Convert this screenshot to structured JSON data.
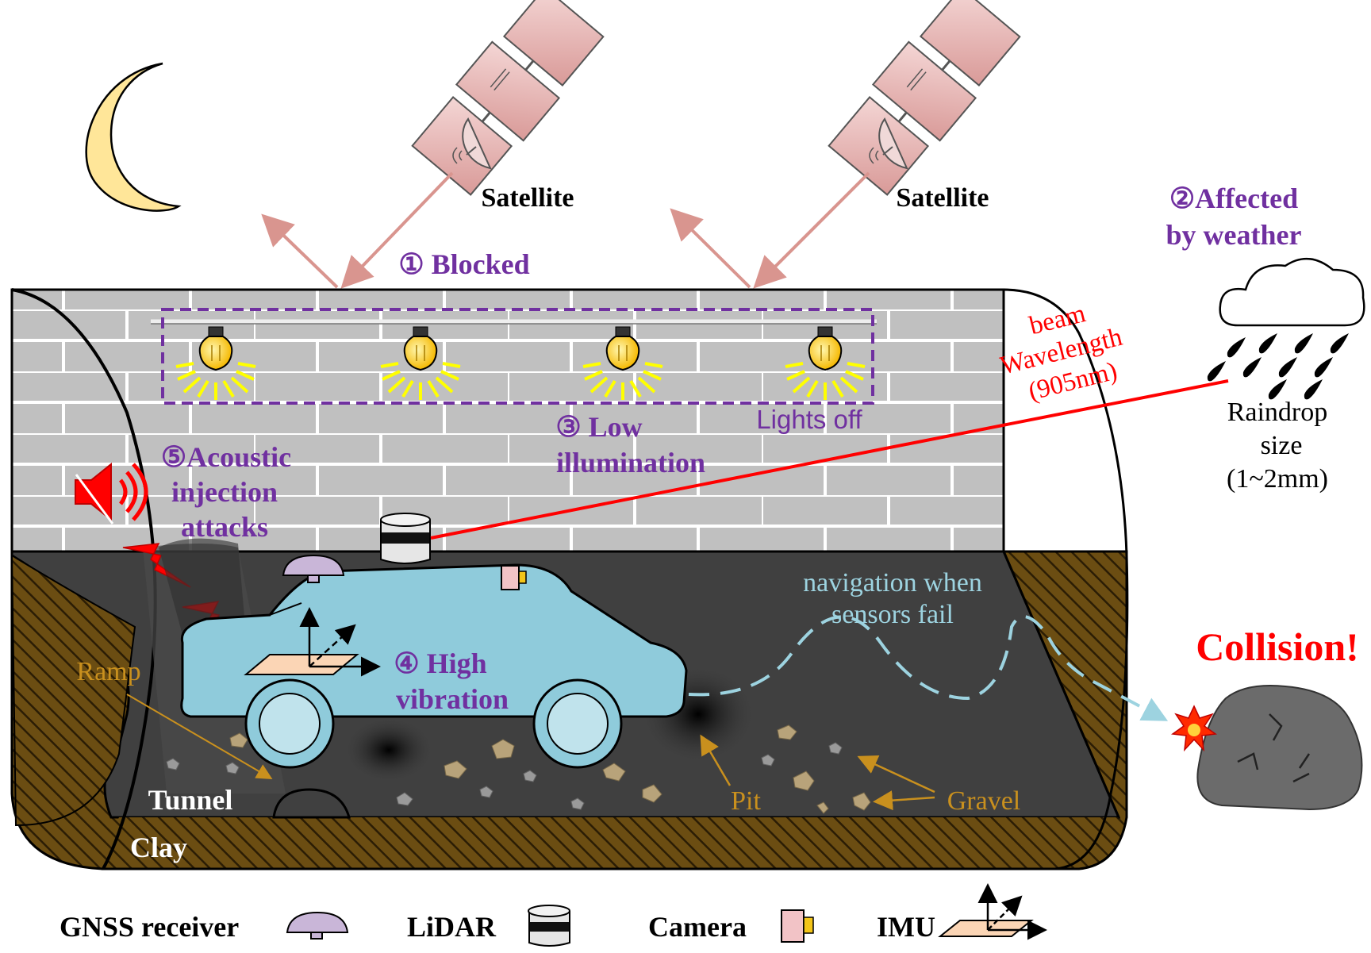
{
  "satellites": [
    {
      "label": "Satellite"
    },
    {
      "label": "Satellite"
    }
  ],
  "challenges": {
    "blocked": "① Blocked",
    "weather_line1": "②Affected",
    "weather_line2": "by weather",
    "low_illum_line1": "③ Low",
    "low_illum_line2": "illumination",
    "lights_off": "Lights off",
    "vibration_line1": "④ High",
    "vibration_line2": "vibration",
    "acoustic_line1": "⑤Acoustic",
    "acoustic_line2": "injection",
    "acoustic_line3": "attacks"
  },
  "beam": {
    "line1": "beam",
    "line2": "Wavelength",
    "line3": "(905nm)"
  },
  "raindrop": {
    "line1": "Raindrop",
    "line2": "size",
    "line3": "(1~2mm)"
  },
  "navigation": {
    "line1": "navigation when",
    "line2": "sensors fail"
  },
  "collision": "Collision!",
  "terrain": {
    "ramp": "Ramp",
    "pit": "Pit",
    "gravel": "Gravel",
    "tunnel": "Tunnel",
    "clay": "Clay"
  },
  "legend": [
    {
      "label": "GNSS receiver",
      "icon": "gnss-receiver-icon"
    },
    {
      "label": "LiDAR",
      "icon": "lidar-icon"
    },
    {
      "label": "Camera",
      "icon": "camera-icon"
    },
    {
      "label": "IMU",
      "icon": "imu-icon"
    }
  ],
  "colors": {
    "challenge_purple": "#7030a0",
    "beam_red": "#ff0000",
    "terrain_label": "#c9901e",
    "navigation_blue": "#9dd3e0",
    "car_body": "#8fcbdb",
    "wall_gray": "#bfbfbf",
    "floor_dark": "#404040",
    "clay_brown": "#6b4d12",
    "satellite_pink": "#e6b8b7",
    "moon_yellow": "#ffe699"
  }
}
